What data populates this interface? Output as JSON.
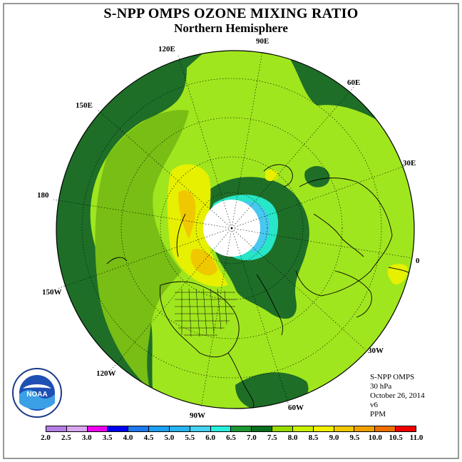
{
  "title": "S-NPP OMPS OZONE MIXING RATIO",
  "subtitle": "Northern Hemisphere",
  "longitude_labels": {
    "lon_90e": "90E",
    "lon_120e": "120E",
    "lon_60e": "60E",
    "lon_150e": "150E",
    "lon_30e": "30E",
    "lon_180": "180",
    "lon_0": "0",
    "lon_150w": "150W",
    "lon_30w": "30W",
    "lon_120w": "120W",
    "lon_60w": "60W",
    "lon_90w": "90W"
  },
  "info": {
    "instrument": "S-NPP OMPS",
    "level": "30 hPa",
    "date": "October 26, 2014",
    "version": "v6",
    "units": "PPM"
  },
  "logo": {
    "text": "NOAA",
    "ring_text": "NATIONAL OCEANIC AND ATMOSPHERIC ADMINISTRATION · U.S. DEPARTMENT OF COMMERCE"
  },
  "colorbar": {
    "ticks": [
      "2.0",
      "2.5",
      "3.0",
      "3.5",
      "4.0",
      "4.5",
      "5.0",
      "5.5",
      "6.0",
      "6.5",
      "7.0",
      "7.5",
      "8.0",
      "8.5",
      "9.0",
      "9.5",
      "10.0",
      "10.5",
      "11.0"
    ],
    "colors": [
      "#b47ee5",
      "#d9a6f0",
      "#f000f0",
      "#0000f0",
      "#1e78f0",
      "#1ea0f0",
      "#28b4f0",
      "#46d2f0",
      "#28f0dc",
      "#1e9632",
      "#0a6e1e",
      "#96dc00",
      "#c8f000",
      "#f0f000",
      "#f0c800",
      "#f0a000",
      "#f06e00",
      "#f00000",
      "#a0522d"
    ]
  },
  "map_fields": {
    "background_color": "#a0e61e",
    "band_color": "#1e6e28",
    "mid_color": "#78be14",
    "high_colors": [
      "#e6f000",
      "#f0c800",
      "#f0a000"
    ],
    "polar_night_color": "#ffffff",
    "low_colors": [
      "#28e6c8",
      "#46c8f0",
      "#1e78f0"
    ]
  }
}
